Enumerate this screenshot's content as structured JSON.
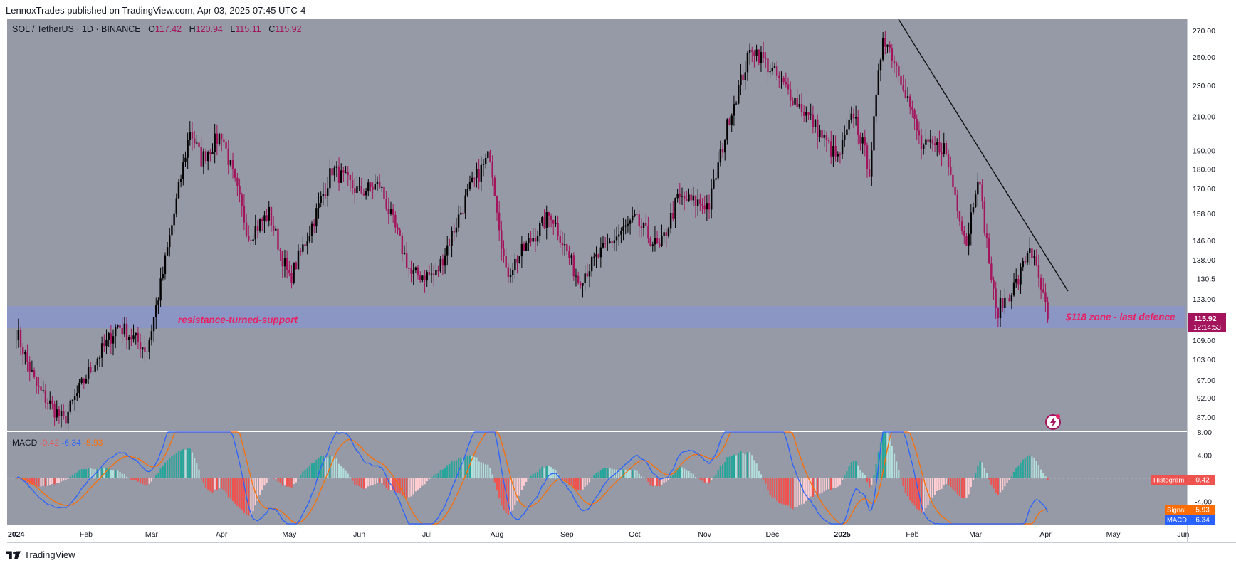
{
  "header": {
    "published_line": "LennoxTrades published on TradingView.com, Apr 03, 2025 07:45 UTC-4"
  },
  "legend": {
    "symbol": "SOL / TetherUS · 1D · BINANCE",
    "open_label": "O",
    "open": "117.42",
    "high_label": "H",
    "high": "120.94",
    "low_label": "L",
    "low": "115.11",
    "close_label": "C",
    "close": "115.92"
  },
  "macd_legend": {
    "name": "MACD",
    "hist": "-0.42",
    "macd": "-6.34",
    "signal": "-5.93"
  },
  "annotations": {
    "zone_left": "resistance-turned-support",
    "zone_right": "$118 zone - last defence"
  },
  "price_badge": {
    "price": "115.92",
    "countdown": "12:14:53"
  },
  "macd_tags": [
    {
      "label": "Histogram",
      "value": "-0.42"
    },
    {
      "label": "Signal",
      "value": "-5.93"
    },
    {
      "label": "MACD",
      "value": "-6.34"
    }
  ],
  "brand": {
    "name": "TradingView"
  },
  "colors": {
    "background": "#959aa6",
    "up_candle": "#000000",
    "down_candle": "#a3145c",
    "zone": "#8a96c8",
    "annotation": "#e91e63",
    "macd_line": "#2962ff",
    "signal_line": "#ff6d00",
    "hist_pos": "#26a69a",
    "hist_pos_light": "#b2dfdb",
    "hist_neg": "#ef5350",
    "hist_neg_light": "#ffcdd2"
  },
  "chart_data": {
    "type": "candlestick",
    "title": "SOL / TetherUS · 1D · BINANCE",
    "price_axis_ticks": [
      270,
      250,
      230,
      210,
      190,
      180,
      170,
      158,
      146,
      138,
      130.5,
      123,
      109,
      103,
      97,
      92,
      87
    ],
    "price_scale": "log",
    "macd_axis_ticks": [
      "8.00",
      "4.00",
      "-4.00"
    ],
    "time_axis_labels": [
      "2024",
      "Feb",
      "Mar",
      "Apr",
      "May",
      "Jun",
      "Jul",
      "Aug",
      "Sep",
      "Oct",
      "Nov",
      "Dec",
      "2025",
      "Feb",
      "Mar",
      "Apr",
      "May",
      "Jun"
    ],
    "price_path": [
      [
        "2024-01-01",
        112
      ],
      [
        "2024-01-10",
        95
      ],
      [
        "2024-01-22",
        86
      ],
      [
        "2024-02-01",
        98
      ],
      [
        "2024-02-15",
        114
      ],
      [
        "2024-02-28",
        106
      ],
      [
        "2024-03-05",
        128
      ],
      [
        "2024-03-18",
        202
      ],
      [
        "2024-03-23",
        185
      ],
      [
        "2024-04-01",
        200
      ],
      [
        "2024-04-13",
        148
      ],
      [
        "2024-04-22",
        158
      ],
      [
        "2024-05-01",
        130
      ],
      [
        "2024-05-10",
        150
      ],
      [
        "2024-05-20",
        180
      ],
      [
        "2024-06-01",
        168
      ],
      [
        "2024-06-10",
        172
      ],
      [
        "2024-06-24",
        132
      ],
      [
        "2024-07-05",
        132
      ],
      [
        "2024-07-20",
        170
      ],
      [
        "2024-07-29",
        188
      ],
      [
        "2024-08-05",
        132
      ],
      [
        "2024-08-15",
        145
      ],
      [
        "2024-08-25",
        158
      ],
      [
        "2024-09-06",
        130
      ],
      [
        "2024-09-20",
        145
      ],
      [
        "2024-10-01",
        155
      ],
      [
        "2024-10-12",
        142
      ],
      [
        "2024-10-20",
        165
      ],
      [
        "2024-11-03",
        162
      ],
      [
        "2024-11-12",
        210
      ],
      [
        "2024-11-22",
        258
      ],
      [
        "2024-12-05",
        232
      ],
      [
        "2024-12-18",
        208
      ],
      [
        "2024-12-30",
        185
      ],
      [
        "2025-01-06",
        212
      ],
      [
        "2025-01-13",
        180
      ],
      [
        "2025-01-19",
        268
      ],
      [
        "2025-01-28",
        232
      ],
      [
        "2025-02-05",
        192
      ],
      [
        "2025-02-15",
        192
      ],
      [
        "2025-02-25",
        145
      ],
      [
        "2025-03-02",
        178
      ],
      [
        "2025-03-10",
        118
      ],
      [
        "2025-03-20",
        130
      ],
      [
        "2025-03-25",
        144
      ],
      [
        "2025-04-02",
        117
      ]
    ],
    "support_zone": {
      "low": 112,
      "high": 120,
      "labels": [
        "resistance-turned-support",
        "$118 zone - last defence"
      ]
    },
    "trendline": {
      "from": [
        "2025-01-19",
        270
      ],
      "to": [
        "2025-04-08",
        125
      ]
    },
    "last_price": 115.92,
    "macd": {
      "histogram": -0.42,
      "signal": -5.93,
      "macd": -6.34
    }
  }
}
